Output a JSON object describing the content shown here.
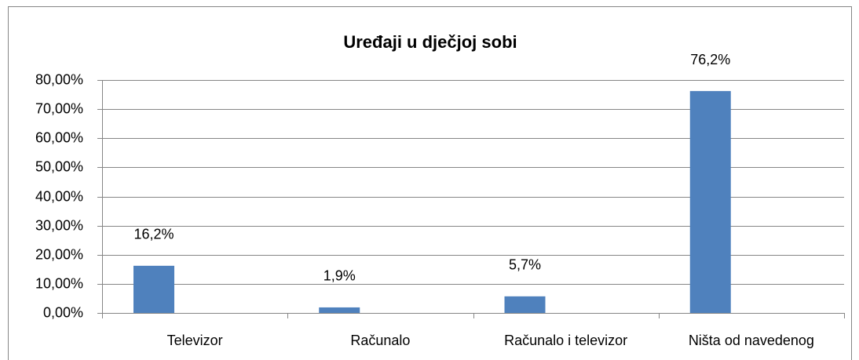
{
  "chart_data": {
    "type": "bar",
    "title": "Uređaji u dječjoj sobi",
    "categories": [
      "Televizor",
      "Računalo",
      "Računalo i televizor",
      "Ništa od navedenog"
    ],
    "values": [
      16.2,
      1.9,
      5.7,
      76.2
    ],
    "value_labels": [
      "16,2%",
      "1,9%",
      "5,7%",
      "76,2%"
    ],
    "color": "#4f81bd",
    "ylim": [
      0,
      80
    ],
    "yticks": [
      {
        "value": 0,
        "label": "0,00%"
      },
      {
        "value": 10,
        "label": "10,00%"
      },
      {
        "value": 20,
        "label": "20,00%"
      },
      {
        "value": 30,
        "label": "30,00%"
      },
      {
        "value": 40,
        "label": "40,00%"
      },
      {
        "value": 50,
        "label": "50,00%"
      },
      {
        "value": 60,
        "label": "60,00%"
      },
      {
        "value": 70,
        "label": "70,00%"
      },
      {
        "value": 80,
        "label": "80,00%"
      }
    ],
    "grid": true
  }
}
